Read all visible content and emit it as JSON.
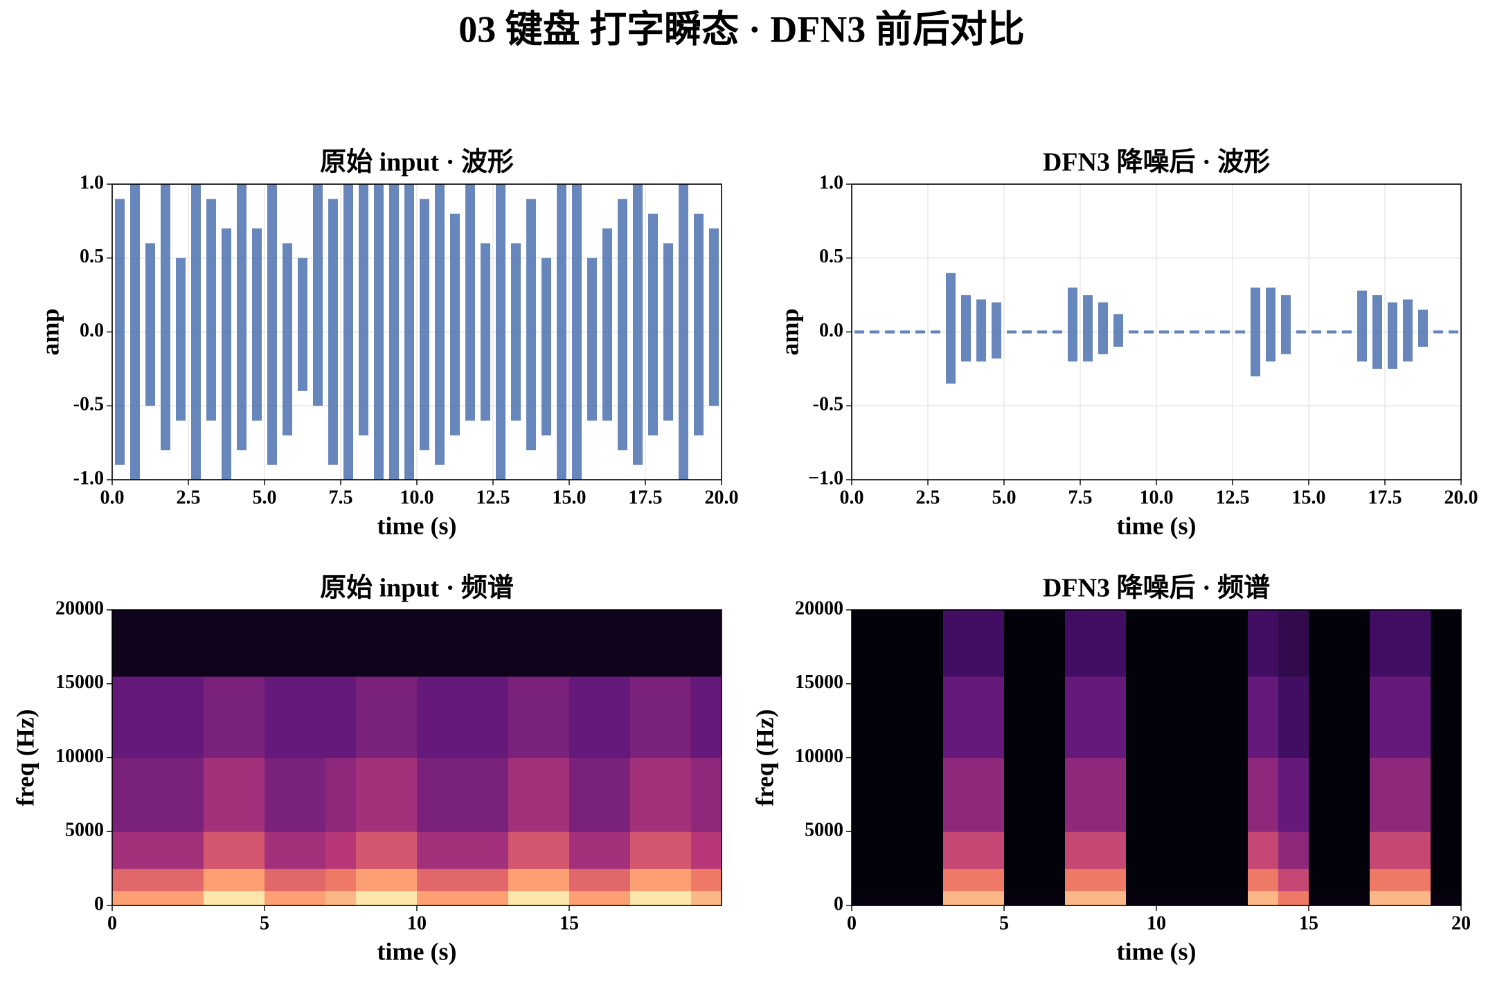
{
  "title": "03 键盘 打字瞬态 · DFN3 前后对比",
  "chart_data": [
    {
      "type": "waveform",
      "title": "原始 input · 波形",
      "xlabel": "time (s)",
      "ylabel": "amp",
      "color": "#4c72b0",
      "grid": true,
      "xlim": [
        0,
        20
      ],
      "ylim": [
        -1,
        1
      ],
      "xticks": [
        {
          "value": 0,
          "label": "0.0"
        },
        2.5,
        {
          "value": 5,
          "label": "5.0"
        },
        7.5,
        {
          "value": 10,
          "label": "10.0"
        },
        12.5,
        {
          "value": 15,
          "label": "15.0"
        },
        17.5,
        {
          "value": 20,
          "label": "20.0"
        }
      ],
      "yticks": [
        {
          "value": -1,
          "label": "-1.0"
        },
        -0.5,
        {
          "value": 0,
          "label": "0.0"
        },
        0.5,
        {
          "value": 1,
          "label": "1.0"
        }
      ],
      "x": [
        0.25,
        0.75,
        1.25,
        1.75,
        2.25,
        2.75,
        3.25,
        3.75,
        4.25,
        4.75,
        5.25,
        5.75,
        6.25,
        6.75,
        7.25,
        7.75,
        8.25,
        8.75,
        9.25,
        9.75,
        10.25,
        10.75,
        11.25,
        11.75,
        12.25,
        12.75,
        13.25,
        13.75,
        14.25,
        14.75,
        15.25,
        15.75,
        16.25,
        16.75,
        17.25,
        17.75,
        18.25,
        18.75,
        19.25,
        19.75
      ],
      "upper": [
        0.9,
        1.0,
        0.6,
        1.0,
        0.5,
        1.0,
        0.9,
        0.7,
        1.0,
        0.7,
        1.0,
        0.6,
        0.5,
        1.0,
        0.9,
        1.0,
        1.0,
        1.0,
        1.0,
        1.0,
        0.9,
        1.0,
        0.8,
        1.0,
        0.6,
        1.0,
        0.6,
        0.9,
        0.5,
        1.0,
        1.0,
        0.5,
        0.7,
        0.9,
        1.0,
        0.8,
        0.6,
        1.0,
        0.8,
        0.7
      ],
      "lower": [
        -0.9,
        -1.0,
        -0.5,
        -0.8,
        -0.6,
        -1.0,
        -0.6,
        -1.0,
        -0.8,
        -0.6,
        -0.9,
        -0.7,
        -0.4,
        -0.5,
        -0.9,
        -1.0,
        -0.7,
        -1.0,
        -1.0,
        -1.0,
        -0.8,
        -0.9,
        -0.7,
        -0.6,
        -0.6,
        -1.0,
        -0.6,
        -0.8,
        -0.7,
        -1.0,
        -1.0,
        -0.6,
        -0.6,
        -0.8,
        -0.9,
        -0.7,
        -0.6,
        -1.0,
        -0.7,
        -0.5
      ]
    },
    {
      "type": "waveform",
      "title": "DFN3 降噪后 · 波形",
      "xlabel": "time (s)",
      "ylabel": "amp",
      "color": "#4c72b0",
      "grid": true,
      "xlim": [
        0,
        20
      ],
      "ylim": [
        -1,
        1
      ],
      "xticks": [
        {
          "value": 0,
          "label": "0.0"
        },
        2.5,
        {
          "value": 5,
          "label": "5.0"
        },
        7.5,
        {
          "value": 10,
          "label": "10.0"
        },
        12.5,
        {
          "value": 15,
          "label": "15.0"
        },
        17.5,
        {
          "value": 20,
          "label": "20.0"
        }
      ],
      "yticks": [
        {
          "value": -1,
          "label": "−1.0"
        },
        -0.5,
        {
          "value": 0,
          "label": "0.0"
        },
        0.5,
        {
          "value": 1,
          "label": "1.0"
        }
      ],
      "x": [
        0.25,
        0.75,
        1.25,
        1.75,
        2.25,
        2.75,
        3.25,
        3.75,
        4.25,
        4.75,
        5.25,
        5.75,
        6.25,
        6.75,
        7.25,
        7.75,
        8.25,
        8.75,
        9.25,
        9.75,
        10.25,
        10.75,
        11.25,
        11.75,
        12.25,
        12.75,
        13.25,
        13.75,
        14.25,
        14.75,
        15.25,
        15.75,
        16.25,
        16.75,
        17.25,
        17.75,
        18.25,
        18.75,
        19.25,
        19.75
      ],
      "upper": [
        0.01,
        0.01,
        0.01,
        0.01,
        0.01,
        0.01,
        0.4,
        0.25,
        0.22,
        0.2,
        0.01,
        0.01,
        0.01,
        0.01,
        0.3,
        0.25,
        0.2,
        0.12,
        0.01,
        0.01,
        0.01,
        0.01,
        0.01,
        0.01,
        0.01,
        0.01,
        0.3,
        0.3,
        0.25,
        0.01,
        0.01,
        0.01,
        0.01,
        0.28,
        0.25,
        0.2,
        0.22,
        0.15,
        0.01,
        0.01
      ],
      "lower": [
        -0.01,
        -0.01,
        -0.01,
        -0.01,
        -0.01,
        -0.01,
        -0.35,
        -0.2,
        -0.2,
        -0.18,
        -0.01,
        -0.01,
        -0.01,
        -0.01,
        -0.2,
        -0.2,
        -0.15,
        -0.1,
        -0.01,
        -0.01,
        -0.01,
        -0.01,
        -0.01,
        -0.01,
        -0.01,
        -0.01,
        -0.3,
        -0.2,
        -0.15,
        -0.01,
        -0.01,
        -0.01,
        -0.01,
        -0.2,
        -0.25,
        -0.25,
        -0.2,
        -0.1,
        -0.01,
        -0.01
      ]
    },
    {
      "type": "spectrogram",
      "title": "原始 input · 频谱",
      "xlabel": "time (s)",
      "ylabel": "freq (Hz)",
      "colormap": "magma",
      "xlim": [
        0,
        20
      ],
      "ylim": [
        0,
        20000
      ],
      "xticks": [
        0,
        5,
        10,
        15
      ],
      "yticks": [
        0,
        5000,
        10000,
        15000,
        20000
      ],
      "time_edges": [
        0,
        1,
        2,
        3,
        4,
        5,
        6,
        7,
        8,
        9,
        10,
        11,
        12,
        13,
        14,
        15,
        16,
        17,
        18,
        19,
        20
      ],
      "freq_edges": [
        0,
        1000,
        2500,
        5000,
        10000,
        15500,
        20000
      ],
      "z": [
        [
          0.8,
          0.8,
          0.8,
          0.95,
          0.95,
          0.8,
          0.8,
          0.85,
          0.95,
          0.95,
          0.8,
          0.8,
          0.8,
          0.95,
          0.95,
          0.8,
          0.8,
          0.95,
          0.95,
          0.85
        ],
        [
          0.65,
          0.65,
          0.65,
          0.8,
          0.8,
          0.65,
          0.65,
          0.7,
          0.8,
          0.8,
          0.65,
          0.65,
          0.65,
          0.8,
          0.8,
          0.65,
          0.65,
          0.8,
          0.8,
          0.7
        ],
        [
          0.45,
          0.45,
          0.45,
          0.6,
          0.6,
          0.45,
          0.45,
          0.5,
          0.6,
          0.6,
          0.45,
          0.45,
          0.45,
          0.6,
          0.6,
          0.45,
          0.45,
          0.6,
          0.6,
          0.5
        ],
        [
          0.35,
          0.35,
          0.35,
          0.45,
          0.45,
          0.35,
          0.35,
          0.4,
          0.45,
          0.45,
          0.35,
          0.35,
          0.35,
          0.45,
          0.45,
          0.35,
          0.35,
          0.45,
          0.45,
          0.4
        ],
        [
          0.3,
          0.3,
          0.3,
          0.35,
          0.35,
          0.3,
          0.3,
          0.3,
          0.35,
          0.35,
          0.3,
          0.3,
          0.3,
          0.35,
          0.35,
          0.3,
          0.3,
          0.35,
          0.35,
          0.3
        ],
        [
          0.05,
          0.05,
          0.05,
          0.05,
          0.05,
          0.05,
          0.05,
          0.05,
          0.05,
          0.05,
          0.05,
          0.05,
          0.05,
          0.05,
          0.05,
          0.05,
          0.05,
          0.05,
          0.05,
          0.05
        ]
      ]
    },
    {
      "type": "spectrogram",
      "title": "DFN3 降噪后 · 频谱",
      "xlabel": "time (s)",
      "ylabel": "freq (Hz)",
      "colormap": "magma",
      "xlim": [
        0,
        20
      ],
      "ylim": [
        0,
        20000
      ],
      "xticks": [
        0,
        5,
        10,
        15,
        20
      ],
      "yticks": [
        0,
        5000,
        10000,
        15000,
        20000
      ],
      "time_edges": [
        0,
        1,
        2,
        3,
        4,
        5,
        6,
        7,
        8,
        9,
        10,
        11,
        12,
        13,
        14,
        15,
        16,
        17,
        18,
        19,
        20
      ],
      "freq_edges": [
        0,
        1000,
        2500,
        5000,
        10000,
        15500,
        20000
      ],
      "z": [
        [
          0.02,
          0.02,
          0.02,
          0.85,
          0.85,
          0.02,
          0.02,
          0.85,
          0.85,
          0.02,
          0.02,
          0.02,
          0.02,
          0.85,
          0.7,
          0.02,
          0.02,
          0.85,
          0.85,
          0.02
        ],
        [
          0.01,
          0.01,
          0.01,
          0.7,
          0.7,
          0.01,
          0.01,
          0.7,
          0.7,
          0.01,
          0.01,
          0.01,
          0.01,
          0.7,
          0.55,
          0.01,
          0.01,
          0.7,
          0.7,
          0.01
        ],
        [
          0.01,
          0.01,
          0.01,
          0.55,
          0.55,
          0.01,
          0.01,
          0.55,
          0.55,
          0.01,
          0.01,
          0.01,
          0.01,
          0.55,
          0.4,
          0.01,
          0.01,
          0.55,
          0.55,
          0.01
        ],
        [
          0.01,
          0.01,
          0.01,
          0.4,
          0.4,
          0.01,
          0.01,
          0.4,
          0.4,
          0.01,
          0.01,
          0.01,
          0.01,
          0.4,
          0.3,
          0.01,
          0.01,
          0.4,
          0.4,
          0.01
        ],
        [
          0.01,
          0.01,
          0.01,
          0.3,
          0.3,
          0.01,
          0.01,
          0.3,
          0.3,
          0.01,
          0.01,
          0.01,
          0.01,
          0.3,
          0.2,
          0.01,
          0.01,
          0.3,
          0.3,
          0.01
        ],
        [
          0.01,
          0.01,
          0.01,
          0.2,
          0.2,
          0.01,
          0.01,
          0.2,
          0.2,
          0.01,
          0.01,
          0.01,
          0.01,
          0.2,
          0.15,
          0.01,
          0.01,
          0.2,
          0.2,
          0.01
        ]
      ]
    }
  ]
}
